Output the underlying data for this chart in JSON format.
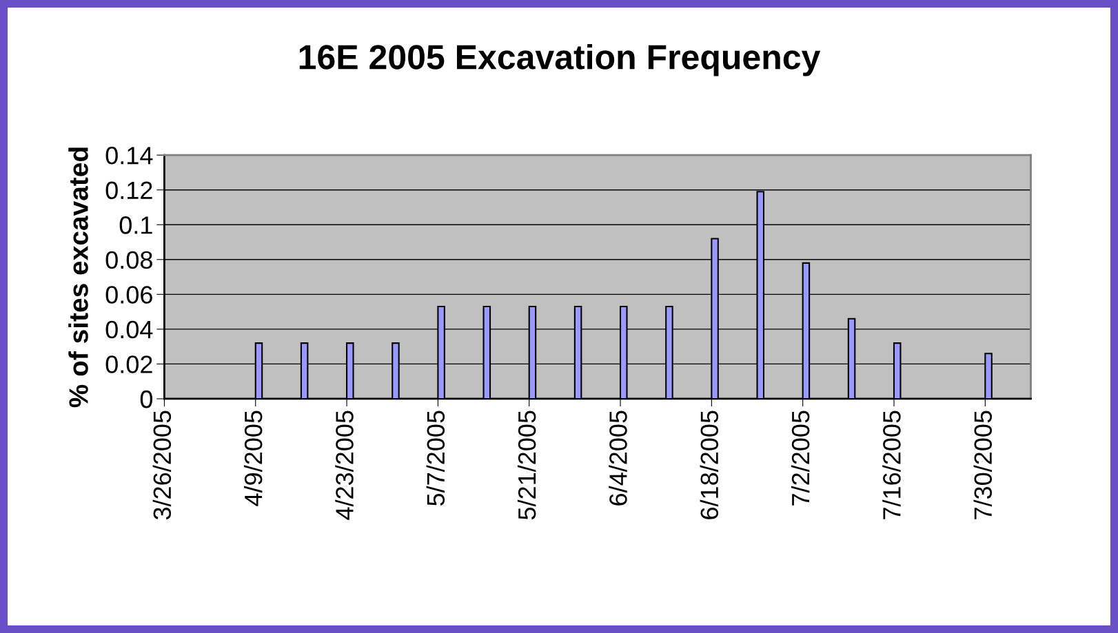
{
  "chart_data": {
    "type": "bar",
    "title": "16E 2005 Excavation Frequency",
    "ylabel": "% of sites excavated",
    "x": [
      "2005-04-09",
      "2005-04-16",
      "2005-04-23",
      "2005-04-30",
      "2005-05-07",
      "2005-05-14",
      "2005-05-21",
      "2005-05-28",
      "2005-06-04",
      "2005-06-11",
      "2005-06-18",
      "2005-06-25",
      "2005-07-02",
      "2005-07-09",
      "2005-07-16",
      "2005-07-30"
    ],
    "values": [
      0.032,
      0.032,
      0.032,
      0.032,
      0.053,
      0.053,
      0.053,
      0.053,
      0.053,
      0.053,
      0.092,
      0.119,
      0.078,
      0.046,
      0.032,
      0.026
    ],
    "color": "#9999ff",
    "xlim": [
      "2005-03-26",
      "2005-08-06"
    ],
    "xticks": [
      {
        "value": "2005-03-26",
        "label": "3/26/2005"
      },
      {
        "value": "2005-04-09",
        "label": "4/9/2005"
      },
      {
        "value": "2005-04-23",
        "label": "4/23/2005"
      },
      {
        "value": "2005-05-07",
        "label": "5/7/2005"
      },
      {
        "value": "2005-05-21",
        "label": "5/21/2005"
      },
      {
        "value": "2005-06-04",
        "label": "6/4/2005"
      },
      {
        "value": "2005-06-18",
        "label": "6/18/2005"
      },
      {
        "value": "2005-07-02",
        "label": "7/2/2005"
      },
      {
        "value": "2005-07-16",
        "label": "7/16/2005"
      },
      {
        "value": "2005-07-30",
        "label": "7/30/2005"
      }
    ],
    "ylim": [
      0,
      0.14
    ],
    "yticks": [
      0,
      0.02,
      0.04,
      0.06,
      0.08,
      0.1,
      0.12,
      0.14
    ],
    "grid": "y"
  }
}
